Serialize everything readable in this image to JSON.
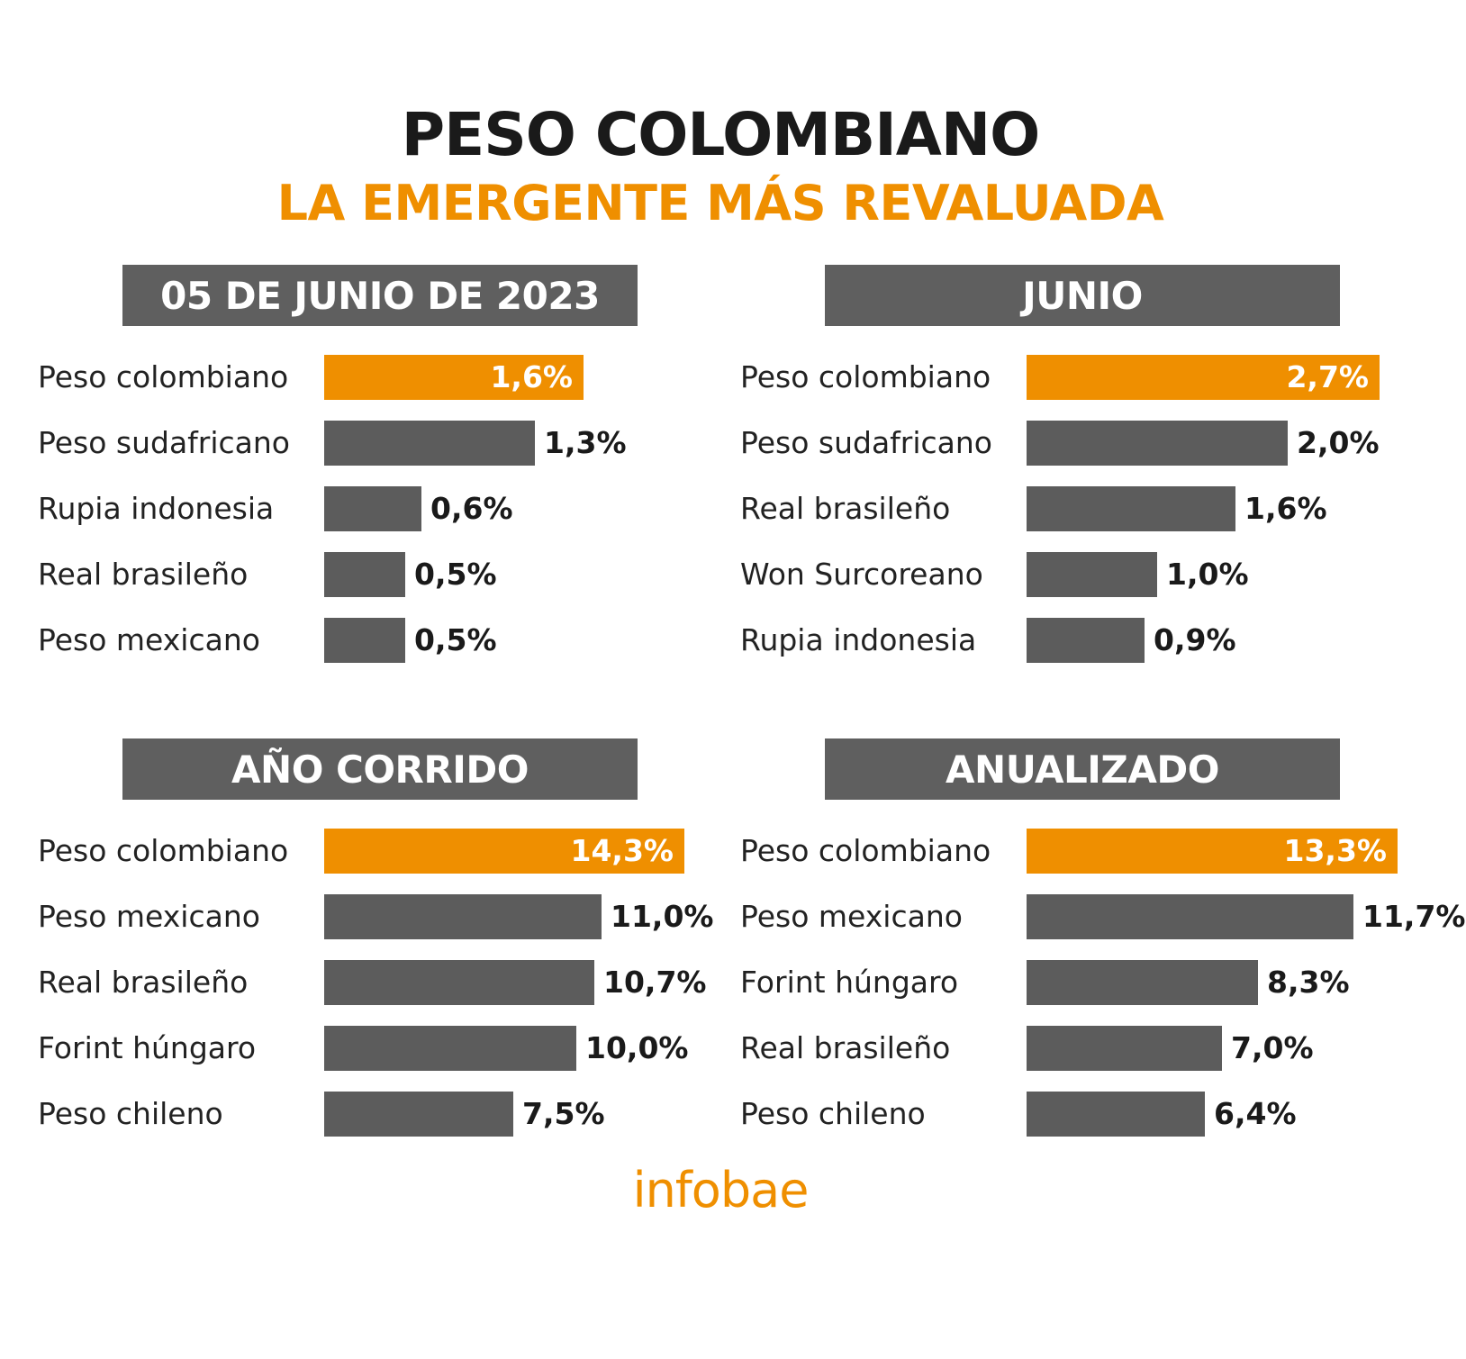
{
  "header": {
    "title": "PESO COLOMBIANO",
    "subtitle": "LA EMERGENTE MÁS REVALUADA"
  },
  "colors": {
    "highlight": "#ef8f00",
    "bar": "#5c5c5c",
    "header_bg": "#5f5f5f"
  },
  "footer": {
    "logo": "infobae"
  },
  "chart_data": [
    {
      "type": "bar",
      "orientation": "horizontal",
      "title": "05 DE JUNIO DE 2023",
      "categories": [
        "Peso colombiano",
        "Peso sudafricano",
        "Rupia indonesia",
        "Real brasileño",
        "Peso mexicano"
      ],
      "values": [
        1.6,
        1.3,
        0.6,
        0.5,
        0.5
      ],
      "labels": [
        "1,6%",
        "1,3%",
        "0,6%",
        "0,5%",
        "0,5%"
      ],
      "highlight_index": 0
    },
    {
      "type": "bar",
      "orientation": "horizontal",
      "title": "JUNIO",
      "categories": [
        "Peso colombiano",
        "Peso sudafricano",
        "Real brasileño",
        "Won Surcoreano",
        "Rupia indonesia"
      ],
      "values": [
        2.7,
        2.0,
        1.6,
        1.0,
        0.9
      ],
      "labels": [
        "2,7%",
        "2,0%",
        "1,6%",
        "1,0%",
        "0,9%"
      ],
      "highlight_index": 0
    },
    {
      "type": "bar",
      "orientation": "horizontal",
      "title": "AÑO CORRIDO",
      "categories": [
        "Peso colombiano",
        "Peso mexicano",
        "Real brasileño",
        "Forint húngaro",
        "Peso chileno"
      ],
      "values": [
        14.3,
        11.0,
        10.7,
        10.0,
        7.5
      ],
      "labels": [
        "14,3%",
        "11,0%",
        "10,7%",
        "10,0%",
        "7,5%"
      ],
      "highlight_index": 0
    },
    {
      "type": "bar",
      "orientation": "horizontal",
      "title": "ANUALIZADO",
      "categories": [
        "Peso colombiano",
        "Peso mexicano",
        "Forint húngaro",
        "Real brasileño",
        "Peso chileno"
      ],
      "values": [
        13.3,
        11.7,
        8.3,
        7.0,
        6.4
      ],
      "labels": [
        "13,3%",
        "11,7%",
        "8,3%",
        "7,0%",
        "6,4%"
      ],
      "highlight_index": 0
    }
  ]
}
